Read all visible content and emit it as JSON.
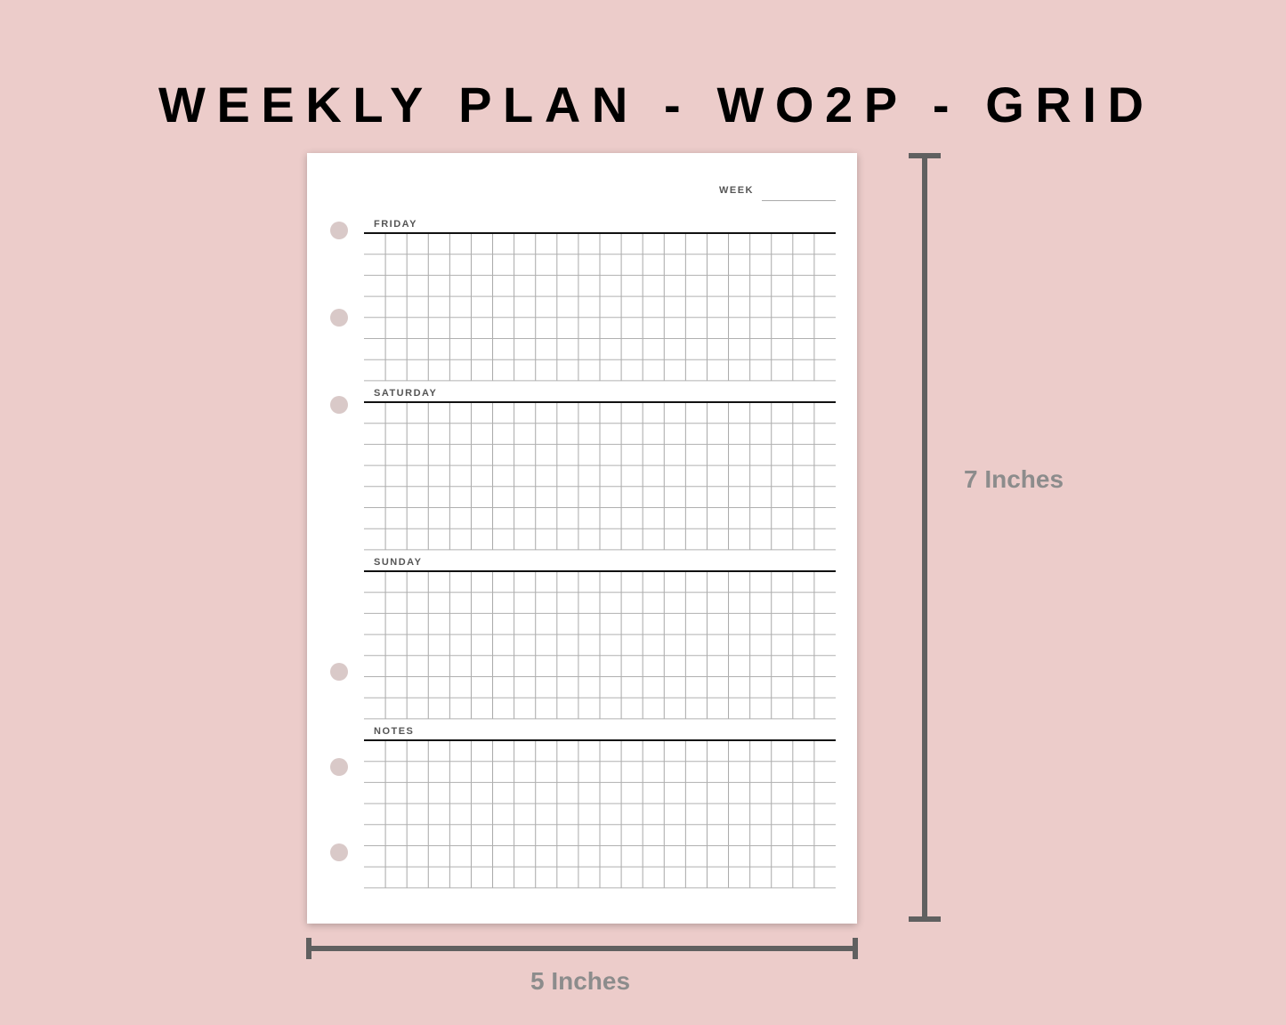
{
  "title": "WEEKLY PLAN - WO2P - GRID",
  "page": {
    "week_label": "WEEK",
    "sections": [
      {
        "label": "FRIDAY"
      },
      {
        "label": "SATURDAY"
      },
      {
        "label": "SUNDAY"
      },
      {
        "label": "NOTES"
      }
    ],
    "grid_columns": 22,
    "grid_rows": 7,
    "ring_holes": 6
  },
  "dimensions": {
    "height_label": "7 Inches",
    "width_label": "5 Inches"
  },
  "colors": {
    "background": "#ecccca",
    "bar": "#606060",
    "label": "#8c8c8c",
    "hole": "#d9c9c8"
  }
}
